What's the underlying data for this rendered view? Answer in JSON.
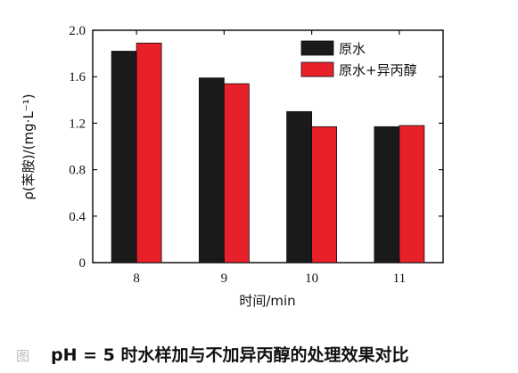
{
  "chart_data": {
    "type": "bar",
    "categories": [
      "8",
      "9",
      "10",
      "11"
    ],
    "series": [
      {
        "name": "原水",
        "color": "#1a1a1a",
        "values": [
          1.82,
          1.59,
          1.3,
          1.17
        ]
      },
      {
        "name": "原水+异丙醇",
        "color": "#e8202a",
        "values": [
          1.89,
          1.54,
          1.17,
          1.18
        ]
      }
    ],
    "xlabel": "时间/min",
    "ylabel": "ρ(苯胺)/(mg·L⁻¹)",
    "ylim": [
      0,
      2.0
    ],
    "yticks": [
      "0",
      "0.4",
      "0.8",
      "1.2",
      "1.6",
      "2.0"
    ],
    "legend_position": "top-right",
    "grid": false
  },
  "caption": {
    "mark": "图",
    "text": "pH = 5 时水样加与不加异丙醇的处理效果对比"
  }
}
